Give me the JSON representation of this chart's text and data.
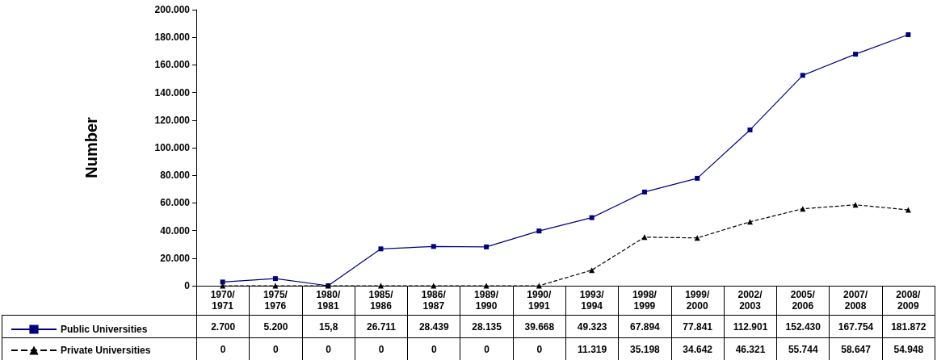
{
  "chart_data": {
    "type": "line",
    "ylabel": "Number",
    "categories": [
      "1970/1971",
      "1975/1976",
      "1980/1981",
      "1985/1986",
      "1986/1987",
      "1989/1990",
      "1990/1991",
      "1993/1994",
      "1998/1999",
      "1999/2000",
      "2002/2003",
      "2005/2006",
      "2007/2008",
      "2008/2009"
    ],
    "series": [
      {
        "name": "Public Universities",
        "color": "#000080",
        "marker": "square",
        "line_style": "solid",
        "values": [
          2700,
          5200,
          15.8,
          26711,
          28439,
          28135,
          39668,
          49323,
          67894,
          77841,
          112901,
          152430,
          167754,
          181872
        ],
        "value_labels": [
          "2.700",
          "5.200",
          "15,8",
          "26.711",
          "28.439",
          "28.135",
          "39.668",
          "49.323",
          "67.894",
          "77.841",
          "112.901",
          "152.430",
          "167.754",
          "181.872"
        ]
      },
      {
        "name": "Private Universities",
        "color": "#000000",
        "marker": "triangle",
        "line_style": "dashed",
        "values": [
          0,
          0,
          0,
          0,
          0,
          0,
          0,
          11319,
          35198,
          34642,
          46321,
          55744,
          58647,
          54948
        ],
        "value_labels": [
          "0",
          "0",
          "0",
          "0",
          "0",
          "0",
          "0",
          "11.319",
          "35.198",
          "34.642",
          "46.321",
          "55.744",
          "58.647",
          "54.948"
        ]
      }
    ],
    "ylim": [
      0,
      200000
    ],
    "yticks": [
      0,
      {
        "value": 20000,
        "label": "20.000"
      },
      {
        "value": 40000,
        "label": "40.000"
      },
      {
        "value": 60000,
        "label": "60.000"
      },
      {
        "value": 80000,
        "label": "80.000"
      },
      {
        "value": 100000,
        "label": "100.000"
      },
      {
        "value": 120000,
        "label": "120.000"
      },
      {
        "value": 140000,
        "label": "140.000"
      },
      {
        "value": 160000,
        "label": "160.000"
      },
      {
        "value": 180000,
        "label": "180.000"
      },
      {
        "value": 200000,
        "label": "200.000"
      }
    ],
    "grid": false,
    "legend": "bottom left"
  }
}
